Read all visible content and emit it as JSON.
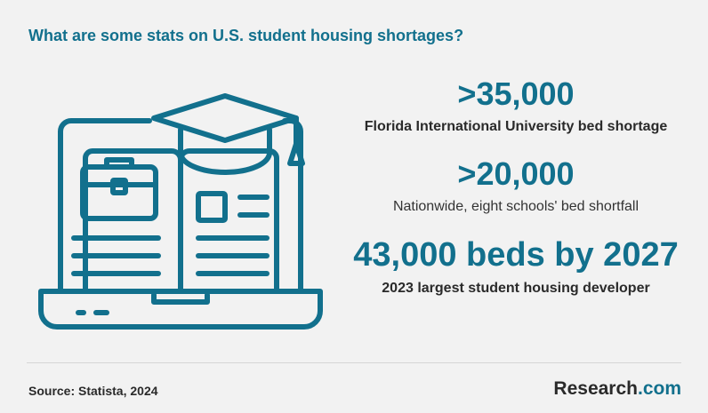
{
  "title": "What are some stats on U.S. student housing shortages?",
  "stats": [
    {
      "value": ">35,000",
      "caption": "Florida International University bed shortage"
    },
    {
      "value": ">20,000",
      "caption": "Nationwide, eight schools' bed shortfall"
    },
    {
      "value": "43,000 beds by 2027",
      "caption": "2023 largest student housing developer"
    }
  ],
  "source": "Source: Statista, 2024",
  "brand": {
    "name": "Research",
    "suffix": ".com"
  },
  "colors": {
    "accent": "#12708d",
    "text": "#2a2a2a",
    "background": "#f2f2f2"
  },
  "illustration": {
    "icon": "laptop-with-graduation-cap-icon"
  }
}
